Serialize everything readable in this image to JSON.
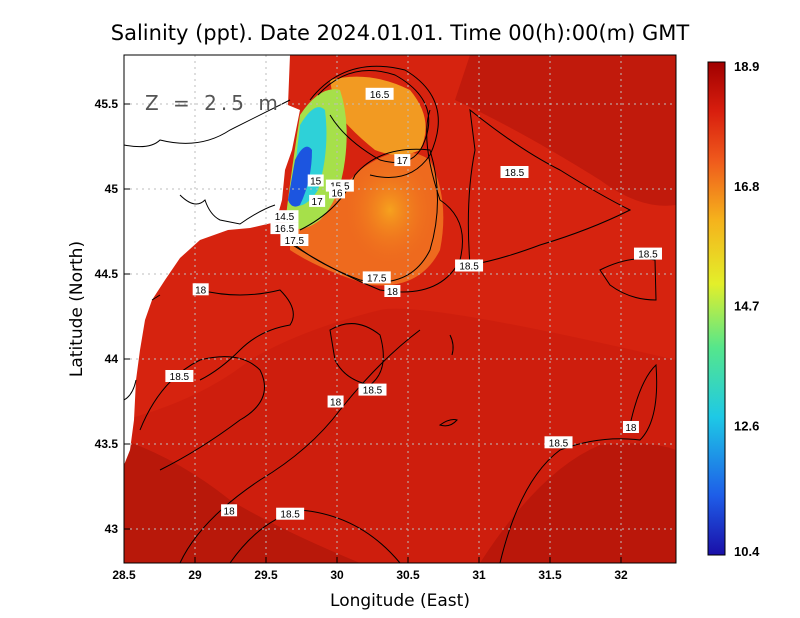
{
  "title": "Salinity (ppt). Date 2024.01.01. Time 00(h):00(m) GMT",
  "depth_label": "Z = 2.5 m",
  "chart_data": {
    "type": "heatmap",
    "variable": "Salinity (ppt)",
    "xlabel": "Longitude (East)",
    "ylabel": "Latitude (North)",
    "xlim": [
      28.5,
      32.4
    ],
    "ylim": [
      42.8,
      45.8
    ],
    "x_ticks": [
      "28.5",
      "29",
      "29.5",
      "30",
      "30.5",
      "31",
      "31.5",
      "32"
    ],
    "y_ticks": [
      "43",
      "43.5",
      "44",
      "44.5",
      "45",
      "45.5"
    ],
    "colorbar": {
      "min": 10.4,
      "max": 18.9,
      "ticks": [
        "18.9",
        "16.8",
        "14.7",
        "12.6",
        "10.4"
      ],
      "colors": [
        "#1a0fa8",
        "#1e5de8",
        "#1ec9e6",
        "#55e68c",
        "#e3ef2a",
        "#f5b21c",
        "#ef5a1c",
        "#d81e0e",
        "#a00000"
      ]
    },
    "grid": true,
    "contour_labels": [
      {
        "lon": 30.3,
        "lat": 45.56,
        "text": "16.5"
      },
      {
        "lon": 30.46,
        "lat": 45.17,
        "text": "17"
      },
      {
        "lon": 31.25,
        "lat": 45.1,
        "text": "18.5"
      },
      {
        "lon": 29.85,
        "lat": 45.05,
        "text": "15"
      },
      {
        "lon": 30.02,
        "lat": 45.02,
        "text": "15.5"
      },
      {
        "lon": 30.0,
        "lat": 44.98,
        "text": "16"
      },
      {
        "lon": 29.86,
        "lat": 44.93,
        "text": "17"
      },
      {
        "lon": 29.63,
        "lat": 44.84,
        "text": "14.5"
      },
      {
        "lon": 29.63,
        "lat": 44.77,
        "text": "16.5"
      },
      {
        "lon": 29.7,
        "lat": 44.7,
        "text": "17.5"
      },
      {
        "lon": 30.28,
        "lat": 44.48,
        "text": "17.5"
      },
      {
        "lon": 30.39,
        "lat": 44.4,
        "text": "18"
      },
      {
        "lon": 30.93,
        "lat": 44.55,
        "text": "18.5"
      },
      {
        "lon": 32.19,
        "lat": 44.62,
        "text": "18.5"
      },
      {
        "lon": 29.04,
        "lat": 44.41,
        "text": "18"
      },
      {
        "lon": 28.89,
        "lat": 43.9,
        "text": "18.5"
      },
      {
        "lon": 30.25,
        "lat": 43.82,
        "text": "18.5"
      },
      {
        "lon": 29.99,
        "lat": 43.75,
        "text": "18"
      },
      {
        "lon": 32.07,
        "lat": 43.6,
        "text": "18"
      },
      {
        "lon": 31.56,
        "lat": 43.51,
        "text": "18.5"
      },
      {
        "lon": 29.24,
        "lat": 43.11,
        "text": "18"
      },
      {
        "lon": 29.67,
        "lat": 43.09,
        "text": "18.5"
      }
    ]
  }
}
